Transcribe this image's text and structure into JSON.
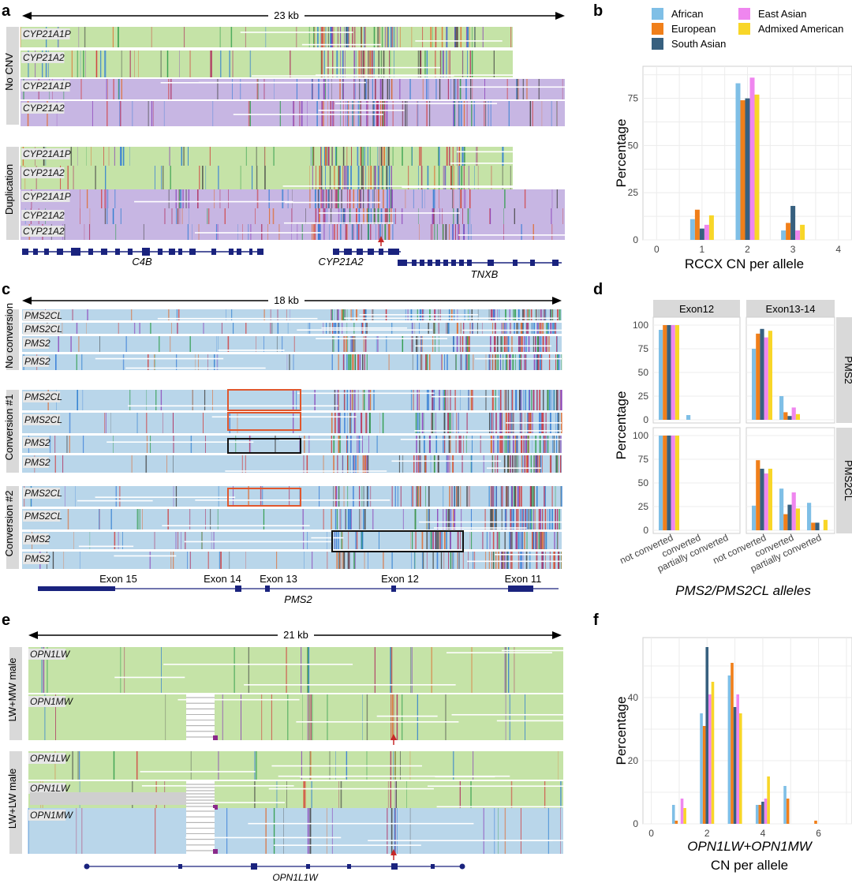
{
  "colors": {
    "African": "#7fbfe6",
    "European": "#f07f1a",
    "South Asian": "#37607f",
    "East Asian": "#ef86ef",
    "Admixed American": "#f8d628",
    "green_track": "#c5e3a7",
    "purple_track": "#c7b6e3",
    "blue_track": "#b9d6ea",
    "gene_navy": "#1a237e",
    "box_red": "#e0572d",
    "arrow_red": "#c62828",
    "strip_grey": "#d9d9d9"
  },
  "panels": {
    "a": {
      "label": "a",
      "scale": "23 kb",
      "groups": [
        {
          "name": "No CNV",
          "tracks": [
            {
              "label": "CYP21A1P",
              "color": "green"
            },
            {
              "label": "CYP21A2",
              "color": "green"
            },
            {
              "label": "CYP21A1P",
              "color": "purple"
            },
            {
              "label": "CYP21A2",
              "color": "purple"
            }
          ]
        },
        {
          "name": "Duplication",
          "tracks": [
            {
              "label": "CYP21A1P",
              "color": "green"
            },
            {
              "label": "CYP21A2",
              "color": "green"
            },
            {
              "label": "CYP21A1P",
              "color": "purple"
            },
            {
              "label": "CYP21A2",
              "color": "purple"
            },
            {
              "label": "CYP21A2",
              "color": "purple"
            }
          ]
        }
      ],
      "genes": [
        "C4B",
        "CYP21A2",
        "TNXB"
      ]
    },
    "c": {
      "label": "c",
      "scale": "18 kb",
      "groups": [
        {
          "name": "No conversion",
          "tracks": [
            {
              "label": "PMS2CL"
            },
            {
              "label": "PMS2CL"
            },
            {
              "label": "PMS2"
            },
            {
              "label": "PMS2"
            }
          ]
        },
        {
          "name": "Conversion #1",
          "tracks": [
            {
              "label": "PMS2CL"
            },
            {
              "label": "PMS2CL"
            },
            {
              "label": "PMS2"
            },
            {
              "label": "PMS2"
            }
          ]
        },
        {
          "name": "Conversion #2",
          "tracks": [
            {
              "label": "PMS2CL"
            },
            {
              "label": "PMS2CL"
            },
            {
              "label": "PMS2"
            },
            {
              "label": "PMS2"
            }
          ]
        }
      ],
      "exons": [
        "Exon 15",
        "Exon 14",
        "Exon 13",
        "Exon 12",
        "Exon 11"
      ],
      "gene": "PMS2"
    },
    "e": {
      "label": "e",
      "scale": "21 kb",
      "groups": [
        {
          "name": "LW+MW male",
          "tracks": [
            {
              "label": "OPN1LW",
              "color": "green"
            },
            {
              "label": "OPN1MW",
              "color": "green"
            }
          ]
        },
        {
          "name": "LW+LW male",
          "tracks": [
            {
              "label": "OPN1LW",
              "color": "green"
            },
            {
              "label": "OPN1LW",
              "color": "green"
            },
            {
              "label": "OPN1MW",
              "color": "blue"
            }
          ]
        }
      ],
      "gene": "OPN1L1W"
    },
    "b": {
      "label": "b"
    },
    "d": {
      "label": "d"
    },
    "f": {
      "label": "f"
    }
  },
  "chart_data": [
    {
      "id": "b",
      "type": "bar",
      "xlabel": "RCCX CN per allele",
      "ylabel": "Percentage",
      "xlim": [
        -0.3,
        4.3
      ],
      "ylim": [
        0,
        92
      ],
      "xticks": [
        "0",
        "1",
        "2",
        "3",
        "4"
      ],
      "yticks": [
        "0",
        "25",
        "50",
        "75"
      ],
      "categories": [
        1,
        2,
        3
      ],
      "legend": [
        "African",
        "European",
        "South Asian",
        "East Asian",
        "Admixed American"
      ],
      "series": [
        {
          "name": "African",
          "values": [
            11,
            83,
            5
          ]
        },
        {
          "name": "European",
          "values": [
            16,
            74,
            9
          ]
        },
        {
          "name": "South Asian",
          "values": [
            6,
            75,
            18
          ]
        },
        {
          "name": "East Asian",
          "values": [
            8,
            86,
            5
          ]
        },
        {
          "name": "Admixed American",
          "values": [
            13,
            77,
            8
          ]
        }
      ]
    },
    {
      "id": "d",
      "type": "bar",
      "xlabel": "PMS2/PMS2CL alleles",
      "ylabel": "Percentage",
      "ylim": [
        0,
        100
      ],
      "yticks": [
        "0",
        "25",
        "50",
        "75",
        "100"
      ],
      "col_facets": [
        "Exon12",
        "Exon13-14"
      ],
      "row_facets": [
        "PMS2",
        "PMS2CL"
      ],
      "categories": [
        "not converted",
        "converted",
        "partially converted"
      ],
      "series_names": [
        "African",
        "European",
        "South Asian",
        "East Asian",
        "Admixed American"
      ],
      "facets": [
        {
          "col": "Exon12",
          "row": "PMS2",
          "values": [
            [
              95,
              0,
              0
            ],
            [
              100,
              0,
              0
            ],
            [
              100,
              0,
              0
            ],
            [
              100,
              0,
              0
            ],
            [
              100,
              0,
              0
            ]
          ],
          "extra": [
            {
              "cat": 1,
              "series": 0,
              "value": 5
            }
          ]
        },
        {
          "col": "Exon13-14",
          "row": "PMS2",
          "values": [
            [
              75,
              25,
              0
            ],
            [
              91,
              8,
              0
            ],
            [
              96,
              4,
              0
            ],
            [
              87,
              13,
              0
            ],
            [
              94,
              6,
              0
            ]
          ]
        },
        {
          "col": "Exon12",
          "row": "PMS2CL",
          "values": [
            [
              100,
              0,
              0
            ],
            [
              100,
              0,
              0
            ],
            [
              100,
              0,
              0
            ],
            [
              100,
              0,
              0
            ],
            [
              100,
              0,
              0
            ]
          ]
        },
        {
          "col": "Exon13-14",
          "row": "PMS2CL",
          "values": [
            [
              26,
              44,
              29
            ],
            [
              74,
              17,
              8
            ],
            [
              65,
              27,
              8
            ],
            [
              60,
              40,
              0
            ],
            [
              65,
              23,
              11
            ]
          ]
        }
      ]
    },
    {
      "id": "f",
      "type": "bar",
      "xlabel": "OPN1LW+OPN1MW",
      "xlabel2": "CN per allele",
      "ylabel": "Percentage",
      "xlim": [
        -0.3,
        7.2
      ],
      "ylim": [
        0,
        59
      ],
      "xticks": [
        "0",
        "2",
        "4",
        "6"
      ],
      "yticks": [
        "0",
        "20",
        "40"
      ],
      "categories": [
        1,
        2,
        3,
        4,
        5,
        6
      ],
      "series": [
        {
          "name": "African",
          "values": [
            6,
            35,
            47,
            6,
            12,
            0
          ]
        },
        {
          "name": "European",
          "values": [
            1,
            31,
            51,
            6,
            8,
            1
          ]
        },
        {
          "name": "South Asian",
          "values": [
            0,
            56,
            37,
            7,
            0,
            0
          ]
        },
        {
          "name": "East Asian",
          "values": [
            8,
            41,
            41,
            8,
            0,
            0
          ]
        },
        {
          "name": "Admixed American",
          "values": [
            5,
            45,
            35,
            15,
            0,
            0
          ]
        }
      ]
    }
  ]
}
